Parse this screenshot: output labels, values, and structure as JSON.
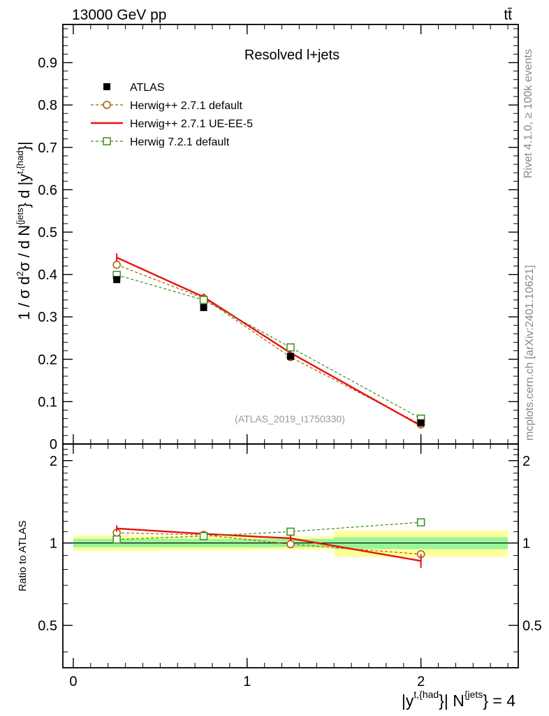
{
  "header": {
    "energy_label": "13000 GeV pp",
    "process_label": "tt̄"
  },
  "side_labels": {
    "rivet": "Rivet 4.1.0, ≥ 100k events",
    "mcplots": "mcplots.cern.ch [arXiv:2401.10621]"
  },
  "chart_data": {
    "type": "line",
    "title": "Resolved l+jets",
    "watermark": "(ATLAS_2019_I1750330)",
    "x_label_parts": [
      "|y",
      "t,{had",
      "}| N",
      "{jets",
      "} = 4"
    ],
    "y_label_parts": [
      "1 / σ d",
      "2",
      "σ / d N",
      "{jets",
      "} d |y",
      "t,{had",
      "}|"
    ],
    "ratio_ylabel": "Ratio to ATLAS",
    "xlim": [
      -0.06,
      2.56
    ],
    "ylim": [
      0,
      0.99
    ],
    "ratio_ylim": [
      0.35,
      2.3
    ],
    "x_ticks": [
      0,
      1,
      2
    ],
    "x_tick_labels": [
      "0",
      "1",
      "2"
    ],
    "y_ticks": [
      0,
      0.1,
      0.2,
      0.3,
      0.4,
      0.5,
      0.6,
      0.7,
      0.8,
      0.9
    ],
    "y_tick_labels": [
      "0",
      "0.1",
      "0.2",
      "0.3",
      "0.4",
      "0.5",
      "0.6",
      "0.7",
      "0.8",
      "0.9"
    ],
    "ratio_y_ticks": [
      0.5,
      1,
      2
    ],
    "ratio_y_tick_labels": [
      "0.5",
      "1",
      "2"
    ],
    "bins": [
      [
        0,
        0.5
      ],
      [
        0.5,
        1.0
      ],
      [
        1.0,
        1.5
      ],
      [
        1.5,
        2.5
      ]
    ],
    "x": [
      0.25,
      0.75,
      1.25,
      2.0
    ],
    "data": {
      "name": "ATLAS",
      "values": [
        0.388,
        0.322,
        0.207,
        0.05
      ],
      "band_stat": [
        0.035,
        0.035,
        0.035,
        0.05
      ],
      "band_total": [
        0.065,
        0.06,
        0.055,
        0.11
      ]
    },
    "series": [
      {
        "name": "Herwig++ 2.7.1 default",
        "color": "#a65c00",
        "marker": "circle",
        "dashed": true,
        "values": [
          0.423,
          0.344,
          0.205,
          0.046
        ],
        "errors": [
          0.006,
          0.005,
          0.004,
          0.002
        ],
        "ratio": [
          1.09,
          1.07,
          0.99,
          0.91
        ],
        "ratio_errors": [
          0.02,
          0.02,
          0.02,
          0.03
        ]
      },
      {
        "name": "Herwig++ 2.7.1 UE-EE-5",
        "color": "#e8120d",
        "marker": "none",
        "dashed": false,
        "values": [
          0.44,
          0.347,
          0.215,
          0.043
        ],
        "errors": [
          0.01,
          0.008,
          0.006,
          0.003
        ],
        "ratio": [
          1.13,
          1.08,
          1.04,
          0.86
        ],
        "ratio_errors": [
          0.03,
          0.025,
          0.025,
          0.05
        ]
      },
      {
        "name": "Herwig 7.2.1 default",
        "color": "#3c8d1c",
        "marker": "square",
        "dashed": true,
        "values": [
          0.399,
          0.34,
          0.228,
          0.06
        ],
        "errors": [
          0.005,
          0.005,
          0.004,
          0.003
        ],
        "ratio": [
          1.03,
          1.06,
          1.1,
          1.19
        ],
        "ratio_errors": [
          0.02,
          0.02,
          0.02,
          0.03
        ]
      }
    ]
  }
}
